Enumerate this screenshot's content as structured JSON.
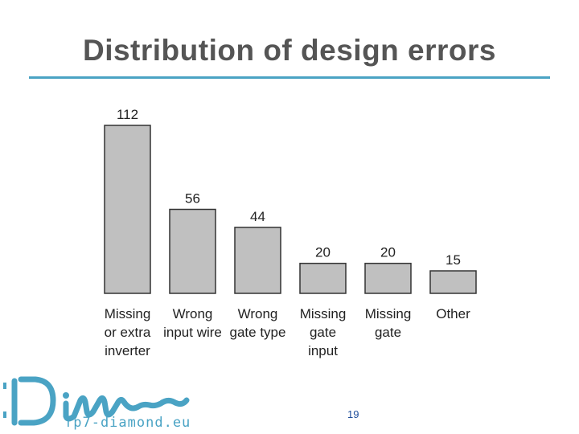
{
  "slide": {
    "title": "Distribution of design errors",
    "page_number": "19"
  },
  "logo": {
    "text": "fp7-diamond.eu"
  },
  "colors": {
    "accent": "#4aa3c4",
    "bar_fill": "#c0c0c0",
    "bar_stroke": "#333333",
    "title": "#555555",
    "page_number": "#1f4e9b"
  },
  "chart_data": {
    "type": "bar",
    "title": "",
    "xlabel": "",
    "ylabel": "",
    "ylim": [
      0,
      112
    ],
    "grid": false,
    "categories": [
      [
        "Missing",
        "or extra",
        "inverter"
      ],
      [
        "Wrong",
        "input wire"
      ],
      [
        "Wrong",
        "gate type"
      ],
      [
        "Missing",
        "gate",
        "input"
      ],
      [
        "Missing",
        "gate"
      ],
      [
        "Other"
      ]
    ],
    "values": [
      112,
      56,
      44,
      20,
      20,
      15
    ]
  }
}
